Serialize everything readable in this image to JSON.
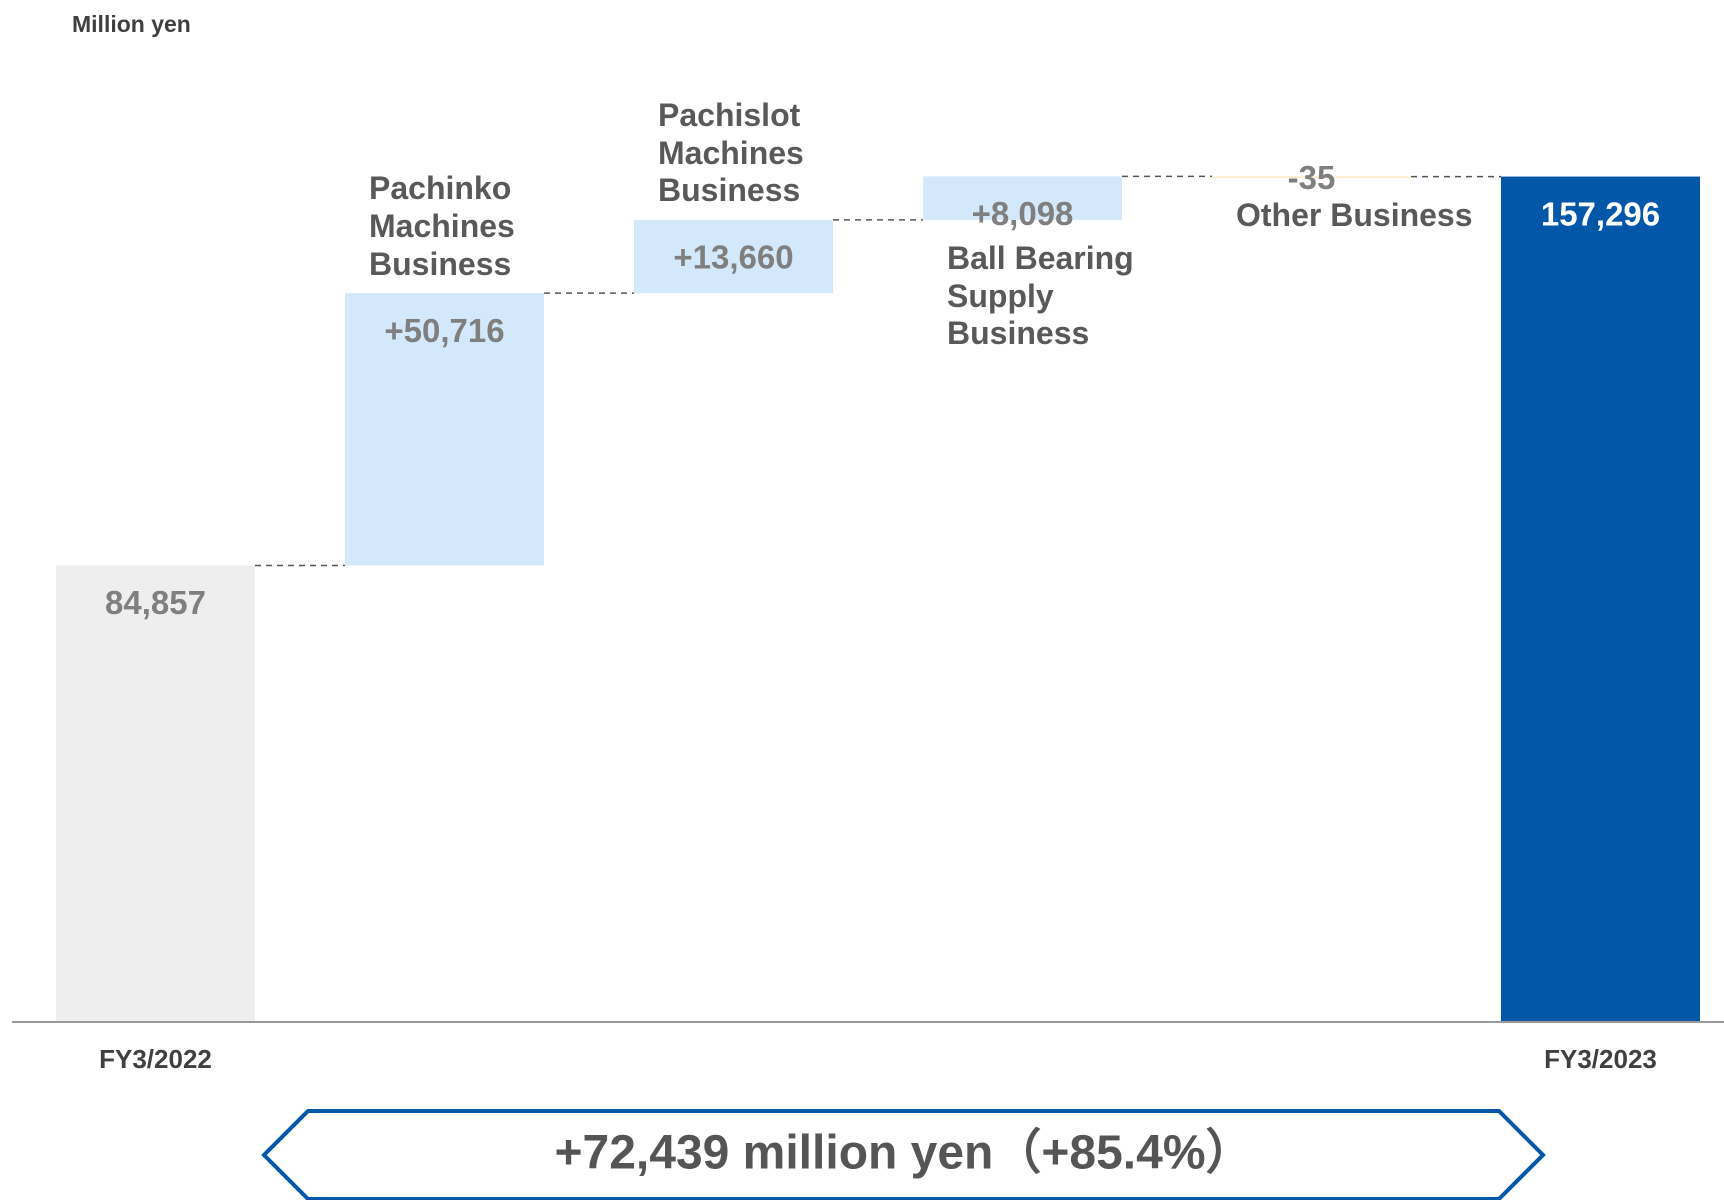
{
  "chart_data": {
    "type": "waterfall",
    "axis_label": "Million yen",
    "categories": [
      "FY3/2022",
      "Pachinko Machines Business",
      "Pachislot Machines Business",
      "Ball Bearing Supply Business",
      "Other Business",
      "FY3/2023"
    ],
    "values": [
      84857,
      50716,
      13660,
      8098,
      -35,
      157296
    ],
    "value_labels": [
      "84,857",
      "+50,716",
      "+13,660",
      "+8,098",
      "-35",
      "157,296"
    ],
    "measures": [
      "absolute",
      "relative",
      "relative",
      "relative",
      "relative",
      "total"
    ],
    "colors": {
      "absolute": "#eeeeee",
      "increase": "#d4e8fb",
      "decrease": "#fde9c4",
      "total": "#0357a8"
    },
    "ylim": [
      0,
      190000
    ],
    "annotation": "+72,439 million yen（+85.4%）"
  }
}
